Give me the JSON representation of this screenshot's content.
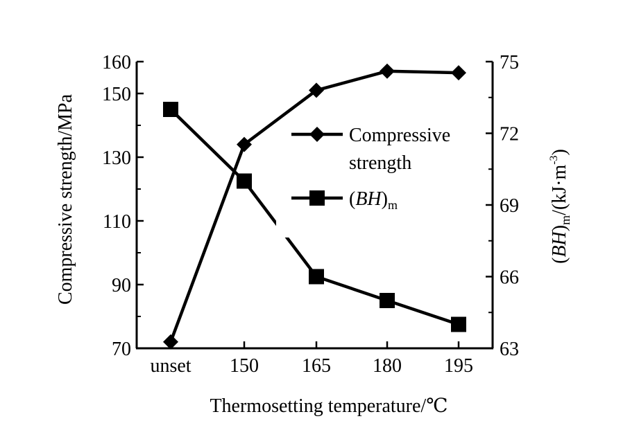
{
  "chart_data": {
    "type": "line",
    "categories": [
      "unset",
      "150",
      "165",
      "180",
      "195"
    ],
    "xlabel": "Thermosetting temperature/℃",
    "ylabel_left": "Compressive strength/MPa",
    "ylabel_right": "(BH)m/(kJ·m⁻³)",
    "ylabel_right_parts": {
      "open": "(",
      "bh": "BH",
      "close": ")",
      "sub": "m",
      "unit": "/(kJ·m",
      "exp": "-3",
      "end": ")"
    },
    "ylim_left": [
      70,
      160
    ],
    "ylim_right": [
      63,
      75
    ],
    "yticks_left": [
      70,
      90,
      110,
      130,
      150,
      160
    ],
    "yticks_right": [
      63,
      66,
      69,
      72,
      75
    ],
    "grid": false,
    "legend_position": "upper-right inside",
    "series": [
      {
        "name": "Compressive strength",
        "name_lines": [
          "Compressive",
          "strength"
        ],
        "axis": "left",
        "marker": "diamond",
        "values": [
          72,
          134,
          151,
          157,
          156.5
        ]
      },
      {
        "name": "(BH)m",
        "axis": "right",
        "marker": "square",
        "values": [
          73,
          70,
          66,
          65,
          64
        ]
      }
    ],
    "colors": {
      "line": "#000000",
      "background": "#ffffff"
    }
  }
}
